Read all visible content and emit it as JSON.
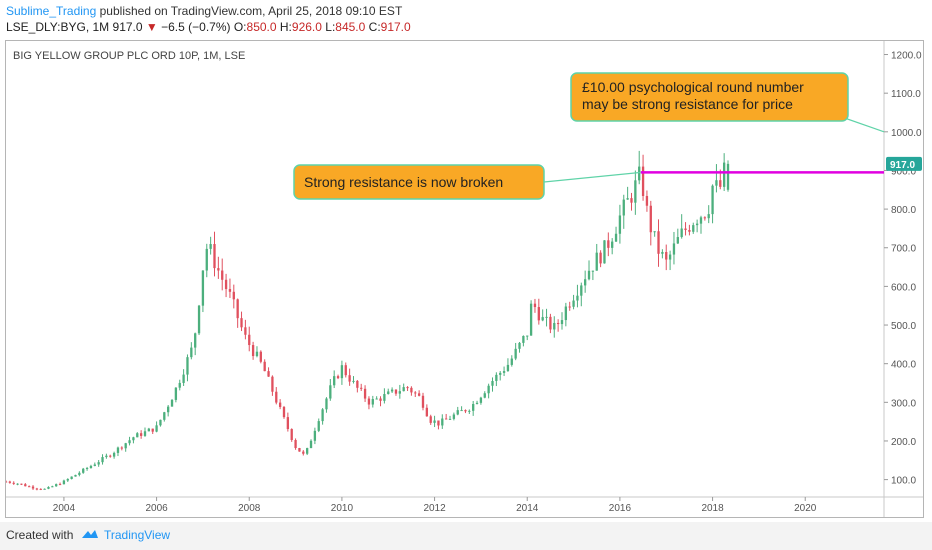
{
  "header": {
    "author": "Sublime_Trading",
    "published": "published on TradingView.com, April 25, 2018 09:10 EST",
    "symbol": "LSE_DLY:BYG, 1M",
    "last": "917.0",
    "arrow": "▼",
    "change": "−6.5 (−0.7%)",
    "o_label": "O:",
    "o_value": "850.0",
    "h_label": "H:",
    "h_value": "926.0",
    "l_label": "L:",
    "l_value": "845.0",
    "c_label": "C:",
    "c_value": "917.0"
  },
  "footer": {
    "created_with": "Created with",
    "brand": "TradingView"
  },
  "colors": {
    "up": "#4caf7d",
    "down": "#e0505e",
    "resistance": "#e100e1",
    "callout_fill": "#f9a825",
    "callout_border": "#5fd3a8",
    "price_tag": "#26a69a"
  },
  "chart_data": {
    "type": "candlestick",
    "title": "BIG YELLOW GROUP PLC ORD 10P, 1M, LSE",
    "x_ticks": [
      "2004",
      "2006",
      "2008",
      "2010",
      "2012",
      "2014",
      "2016",
      "2018",
      "2020"
    ],
    "y_ticks": [
      "100.0",
      "200.0",
      "300.0",
      "400.0",
      "500.0",
      "600.0",
      "700.0",
      "800.0",
      "900.0",
      "1000.0",
      "1100.0",
      "1200.0"
    ],
    "ylim": [
      55,
      1235
    ],
    "xlim": [
      2002.75,
      2021.7
    ],
    "last_price_label": "917.0",
    "resistance": {
      "value": 895,
      "from": 2016.45,
      "to": 2021.7
    },
    "annotations": [
      {
        "text": "Strong resistance is now broken"
      },
      {
        "text_lines": [
          "£10.00 psychological round number",
          "may be strong resistance for price"
        ]
      }
    ],
    "close_path": [
      [
        2002.75,
        95
      ],
      [
        2003.0,
        90
      ],
      [
        2003.3,
        80
      ],
      [
        2003.6,
        75
      ],
      [
        2004.0,
        95
      ],
      [
        2004.5,
        130
      ],
      [
        2005.0,
        165
      ],
      [
        2005.5,
        210
      ],
      [
        2006.0,
        235
      ],
      [
        2006.4,
        330
      ],
      [
        2006.8,
        450
      ],
      [
        2007.0,
        650
      ],
      [
        2007.1,
        710
      ],
      [
        2007.3,
        650
      ],
      [
        2007.6,
        570
      ],
      [
        2007.9,
        470
      ],
      [
        2008.3,
        390
      ],
      [
        2008.7,
        270
      ],
      [
        2009.0,
        185
      ],
      [
        2009.2,
        160
      ],
      [
        2009.5,
        260
      ],
      [
        2009.8,
        350
      ],
      [
        2010.0,
        390
      ],
      [
        2010.3,
        340
      ],
      [
        2010.6,
        300
      ],
      [
        2011.0,
        320
      ],
      [
        2011.4,
        340
      ],
      [
        2011.7,
        310
      ],
      [
        2011.9,
        255
      ],
      [
        2012.1,
        245
      ],
      [
        2012.4,
        265
      ],
      [
        2012.8,
        290
      ],
      [
        2013.2,
        350
      ],
      [
        2013.6,
        400
      ],
      [
        2014.0,
        480
      ],
      [
        2014.1,
        560
      ],
      [
        2014.35,
        510
      ],
      [
        2014.6,
        490
      ],
      [
        2014.9,
        560
      ],
      [
        2015.3,
        640
      ],
      [
        2015.7,
        700
      ],
      [
        2016.0,
        780
      ],
      [
        2016.3,
        850
      ],
      [
        2016.45,
        890
      ],
      [
        2016.6,
        780
      ],
      [
        2016.8,
        700
      ],
      [
        2017.0,
        660
      ],
      [
        2017.3,
        730
      ],
      [
        2017.6,
        775
      ],
      [
        2017.9,
        800
      ],
      [
        2018.0,
        860
      ],
      [
        2018.15,
        850
      ],
      [
        2018.3,
        917
      ]
    ],
    "current": {
      "open": 850.0,
      "high": 926.0,
      "low": 845.0,
      "close": 917.0
    }
  }
}
